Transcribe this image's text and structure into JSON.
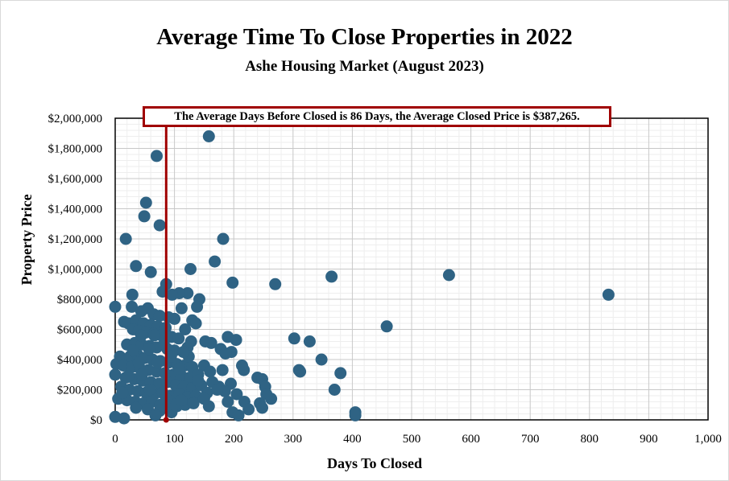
{
  "chart_data": {
    "type": "scatter",
    "title": "Average Time To Close Properties in 2022",
    "subtitle": "Ashe Housing Market (August 2023)",
    "xlabel": "Days To Closed",
    "ylabel": "Property Price",
    "xlim": [
      0,
      1000
    ],
    "ylim": [
      0,
      2000000
    ],
    "x_ticks": [
      "0",
      "100",
      "200",
      "300",
      "400",
      "500",
      "600",
      "700",
      "800",
      "900",
      "1,000"
    ],
    "y_ticks": [
      "$0",
      "$200,000",
      "$400,000",
      "$600,000",
      "$800,000",
      "$1,000,000",
      "$1,200,000",
      "$1,400,000",
      "$1,600,000",
      "$1,800,000",
      "$2,000,000"
    ],
    "grid": true,
    "point_color": "#2f6384",
    "average_line": {
      "x": 86,
      "color": "#a00000"
    },
    "annotation": "The Average Days Before Closed is 86 Days, the Average Closed Price is $387,265.",
    "points": [
      [
        158,
        1880000
      ],
      [
        70,
        1750000
      ],
      [
        52,
        1440000
      ],
      [
        49,
        1350000
      ],
      [
        75,
        1290000
      ],
      [
        18,
        1200000
      ],
      [
        182,
        1200000
      ],
      [
        168,
        1050000
      ],
      [
        35,
        1020000
      ],
      [
        127,
        1000000
      ],
      [
        60,
        980000
      ],
      [
        563,
        960000
      ],
      [
        365,
        950000
      ],
      [
        198,
        910000
      ],
      [
        270,
        900000
      ],
      [
        86,
        900000
      ],
      [
        832,
        830000
      ],
      [
        29,
        830000
      ],
      [
        122,
        840000
      ],
      [
        108,
        840000
      ],
      [
        80,
        850000
      ],
      [
        96,
        830000
      ],
      [
        142,
        800000
      ],
      [
        0,
        750000
      ],
      [
        138,
        750000
      ],
      [
        112,
        740000
      ],
      [
        28,
        750000
      ],
      [
        55,
        740000
      ],
      [
        44,
        720000
      ],
      [
        65,
        700000
      ],
      [
        75,
        690000
      ],
      [
        90,
        680000
      ],
      [
        100,
        670000
      ],
      [
        130,
        660000
      ],
      [
        15,
        650000
      ],
      [
        22,
        640000
      ],
      [
        35,
        660000
      ],
      [
        48,
        640000
      ],
      [
        60,
        630000
      ],
      [
        72,
        620000
      ],
      [
        458,
        620000
      ],
      [
        85,
        610000
      ],
      [
        118,
        600000
      ],
      [
        30,
        600000
      ],
      [
        40,
        590000
      ],
      [
        52,
        580000
      ],
      [
        65,
        570000
      ],
      [
        78,
        560000
      ],
      [
        95,
        550000
      ],
      [
        107,
        540000
      ],
      [
        190,
        550000
      ],
      [
        204,
        530000
      ],
      [
        302,
        540000
      ],
      [
        152,
        520000
      ],
      [
        162,
        510000
      ],
      [
        328,
        520000
      ],
      [
        20,
        500000
      ],
      [
        33,
        510000
      ],
      [
        45,
        500000
      ],
      [
        58,
        490000
      ],
      [
        70,
        480000
      ],
      [
        88,
        470000
      ],
      [
        100,
        460000
      ],
      [
        122,
        480000
      ],
      [
        178,
        470000
      ],
      [
        196,
        450000
      ],
      [
        186,
        440000
      ],
      [
        8,
        420000
      ],
      [
        25,
        420000
      ],
      [
        38,
        430000
      ],
      [
        50,
        410000
      ],
      [
        63,
        400000
      ],
      [
        76,
        390000
      ],
      [
        90,
        380000
      ],
      [
        104,
        370000
      ],
      [
        117,
        360000
      ],
      [
        130,
        350000
      ],
      [
        150,
        360000
      ],
      [
        348,
        400000
      ],
      [
        2,
        370000
      ],
      [
        14,
        360000
      ],
      [
        28,
        350000
      ],
      [
        42,
        340000
      ],
      [
        56,
        330000
      ],
      [
        70,
        320000
      ],
      [
        84,
        310000
      ],
      [
        98,
        300000
      ],
      [
        112,
        290000
      ],
      [
        126,
        280000
      ],
      [
        140,
        300000
      ],
      [
        160,
        320000
      ],
      [
        181,
        330000
      ],
      [
        214,
        360000
      ],
      [
        217,
        330000
      ],
      [
        310,
        330000
      ],
      [
        312,
        320000
      ],
      [
        380,
        310000
      ],
      [
        0,
        300000
      ],
      [
        18,
        280000
      ],
      [
        32,
        270000
      ],
      [
        46,
        260000
      ],
      [
        60,
        250000
      ],
      [
        74,
        240000
      ],
      [
        88,
        250000
      ],
      [
        102,
        230000
      ],
      [
        116,
        220000
      ],
      [
        130,
        210000
      ],
      [
        145,
        230000
      ],
      [
        175,
        220000
      ],
      [
        195,
        240000
      ],
      [
        240,
        280000
      ],
      [
        248,
        270000
      ],
      [
        10,
        220000
      ],
      [
        24,
        200000
      ],
      [
        38,
        190000
      ],
      [
        52,
        180000
      ],
      [
        66,
        170000
      ],
      [
        80,
        180000
      ],
      [
        94,
        160000
      ],
      [
        108,
        170000
      ],
      [
        122,
        150000
      ],
      [
        136,
        160000
      ],
      [
        155,
        180000
      ],
      [
        185,
        190000
      ],
      [
        205,
        170000
      ],
      [
        253,
        220000
      ],
      [
        370,
        200000
      ],
      [
        5,
        140000
      ],
      [
        20,
        130000
      ],
      [
        34,
        120000
      ],
      [
        48,
        110000
      ],
      [
        62,
        120000
      ],
      [
        76,
        100000
      ],
      [
        90,
        110000
      ],
      [
        104,
        90000
      ],
      [
        118,
        100000
      ],
      [
        132,
        110000
      ],
      [
        158,
        90000
      ],
      [
        190,
        120000
      ],
      [
        218,
        120000
      ],
      [
        244,
        110000
      ],
      [
        263,
        140000
      ],
      [
        255,
        170000
      ],
      [
        248,
        80000
      ],
      [
        225,
        70000
      ],
      [
        35,
        80000
      ],
      [
        55,
        70000
      ],
      [
        75,
        60000
      ],
      [
        95,
        50000
      ],
      [
        198,
        50000
      ],
      [
        208,
        30000
      ],
      [
        405,
        50000
      ],
      [
        405,
        30000
      ],
      [
        0,
        20000
      ],
      [
        15,
        10000
      ],
      [
        68,
        30000
      ],
      [
        100,
        100000
      ],
      [
        112,
        130000
      ],
      [
        140,
        260000
      ],
      [
        150,
        140000
      ],
      [
        164,
        250000
      ],
      [
        172,
        200000
      ],
      [
        45,
        300000
      ],
      [
        57,
        470000
      ],
      [
        66,
        560000
      ],
      [
        82,
        500000
      ],
      [
        94,
        420000
      ],
      [
        108,
        340000
      ],
      [
        124,
        420000
      ],
      [
        40,
        380000
      ],
      [
        30,
        460000
      ],
      [
        22,
        290000
      ],
      [
        12,
        180000
      ],
      [
        72,
        380000
      ],
      [
        86,
        140000
      ],
      [
        115,
        450000
      ],
      [
        128,
        520000
      ],
      [
        136,
        640000
      ],
      [
        44,
        560000
      ],
      [
        58,
        200000
      ]
    ]
  }
}
